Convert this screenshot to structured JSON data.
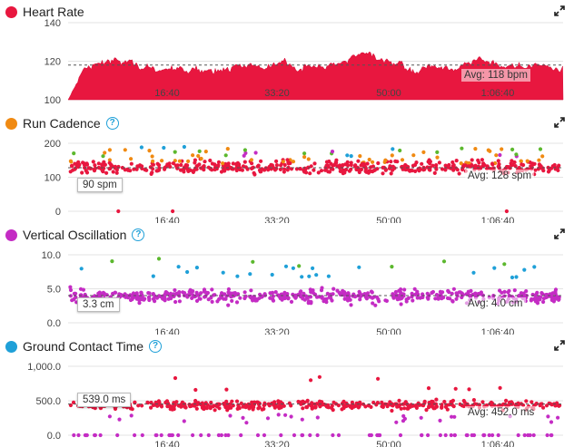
{
  "panels": [
    {
      "title": "Heart Rate",
      "color": "#e8173f",
      "help": false,
      "type": "area",
      "yticks": [
        "140",
        "120",
        "100"
      ],
      "ymin": 100,
      "ymax": 140,
      "avg_value": 118,
      "avg_label": "Avg: 118 bpm",
      "badge": ""
    },
    {
      "title": "Run Cadence",
      "color": "#f08a12",
      "help": true,
      "type": "scatter",
      "yticks": [
        "200",
        "100",
        "0"
      ],
      "ymin": 0,
      "ymax": 200,
      "avg_value": 128,
      "avg_label": "Avg: 128 spm",
      "badge": "90 spm"
    },
    {
      "title": "Vertical Oscillation",
      "color": "#c42cc4",
      "help": true,
      "type": "scatter",
      "yticks": [
        "10.0",
        "5.0",
        "0.0"
      ],
      "ymin": 0,
      "ymax": 10,
      "avg_value": 4.0,
      "avg_label": "Avg: 4.0 cm",
      "badge": "3.3 cm"
    },
    {
      "title": "Ground Contact Time",
      "color": "#1fa0d8",
      "help": true,
      "type": "scatter",
      "yticks": [
        "1,000.0",
        "500.0",
        "0.0"
      ],
      "ymin": 0,
      "ymax": 1000,
      "avg_value": 452,
      "avg_label": "Avg: 452.0 ms",
      "badge": "539.0 ms"
    }
  ],
  "xticks": [
    "16:40",
    "33:20",
    "50:00",
    "1:06:40"
  ],
  "chart_data": [
    {
      "type": "area",
      "title": "Heart Rate",
      "ylim": [
        100,
        140
      ],
      "avg": 118,
      "x_ticks": [
        "16:40",
        "33:20",
        "50:00",
        "1:06:40"
      ]
    },
    {
      "type": "scatter",
      "title": "Run Cadence",
      "ylim": [
        0,
        200
      ],
      "avg": 128,
      "x_ticks": [
        "16:40",
        "33:20",
        "50:00",
        "1:06:40"
      ]
    },
    {
      "type": "scatter",
      "title": "Vertical Oscillation",
      "ylim": [
        0,
        10
      ],
      "avg": 4.0,
      "x_ticks": [
        "16:40",
        "33:20",
        "50:00",
        "1:06:40"
      ]
    },
    {
      "type": "scatter",
      "title": "Ground Contact Time",
      "ylim": [
        0,
        1000
      ],
      "avg": 452,
      "x_ticks": [
        "16:40",
        "33:20",
        "50:00",
        "1:06:40"
      ]
    }
  ]
}
